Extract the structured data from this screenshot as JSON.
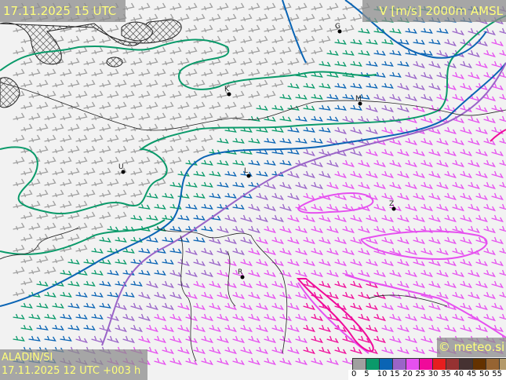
{
  "header": {
    "valid_time": "17.11.2025 15 UTC",
    "parameter": "V [m/s] 2000m AMSL"
  },
  "footer": {
    "model": "ALADIN/SI",
    "run": "17.11.2025 12 UTC +003 h",
    "copyright": "© meteo.si"
  },
  "legend": {
    "unit": "m/s",
    "labels": [
      "0",
      "5",
      "10",
      "15",
      "20",
      "25",
      "30",
      "35",
      "40",
      "45",
      "50",
      "55"
    ],
    "colors": [
      "#a0a0a0",
      "#0a9a6a",
      "#0a64b4",
      "#9a64c8",
      "#e650f0",
      "#f00a9a",
      "#e61e1e",
      "#963232",
      "#463232",
      "#643200",
      "#966432",
      "#b49a6a"
    ]
  },
  "cities": [
    {
      "label": "G"
    },
    {
      "label": "K"
    },
    {
      "label": "M"
    },
    {
      "label": "U"
    },
    {
      "label": "L"
    },
    {
      "label": "Z"
    },
    {
      "label": "R"
    }
  ]
}
